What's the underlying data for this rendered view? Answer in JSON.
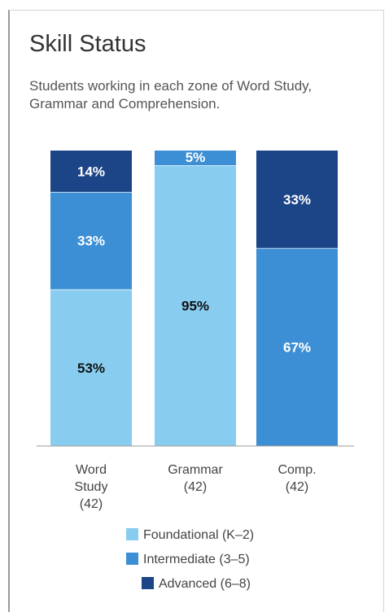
{
  "title": "Skill Status",
  "subtitle": "Students working in each zone of Word Study, Grammar and Comprehension.",
  "colors": {
    "foundational": "#88cdf0",
    "intermediate": "#3c8fd4",
    "advanced": "#1c4588",
    "axis": "#9a9a9a"
  },
  "chart_data": {
    "type": "bar",
    "stacked": true,
    "percent": true,
    "ylim": [
      0,
      100
    ],
    "categories": [
      [
        "Word",
        "Study",
        "(42)"
      ],
      [
        "Grammar",
        "(42)"
      ],
      [
        "Comp.",
        "(42)"
      ]
    ],
    "series": [
      {
        "name": "Foundational (K–2)",
        "color_key": "foundational",
        "values": [
          53,
          95,
          0
        ]
      },
      {
        "name": "Intermediate (3–5)",
        "color_key": "intermediate",
        "values": [
          33,
          5,
          67
        ]
      },
      {
        "name": "Advanced (6–8)",
        "color_key": "advanced",
        "values": [
          14,
          0,
          33
        ]
      }
    ],
    "value_suffix": "%",
    "legend_position": "bottom"
  }
}
